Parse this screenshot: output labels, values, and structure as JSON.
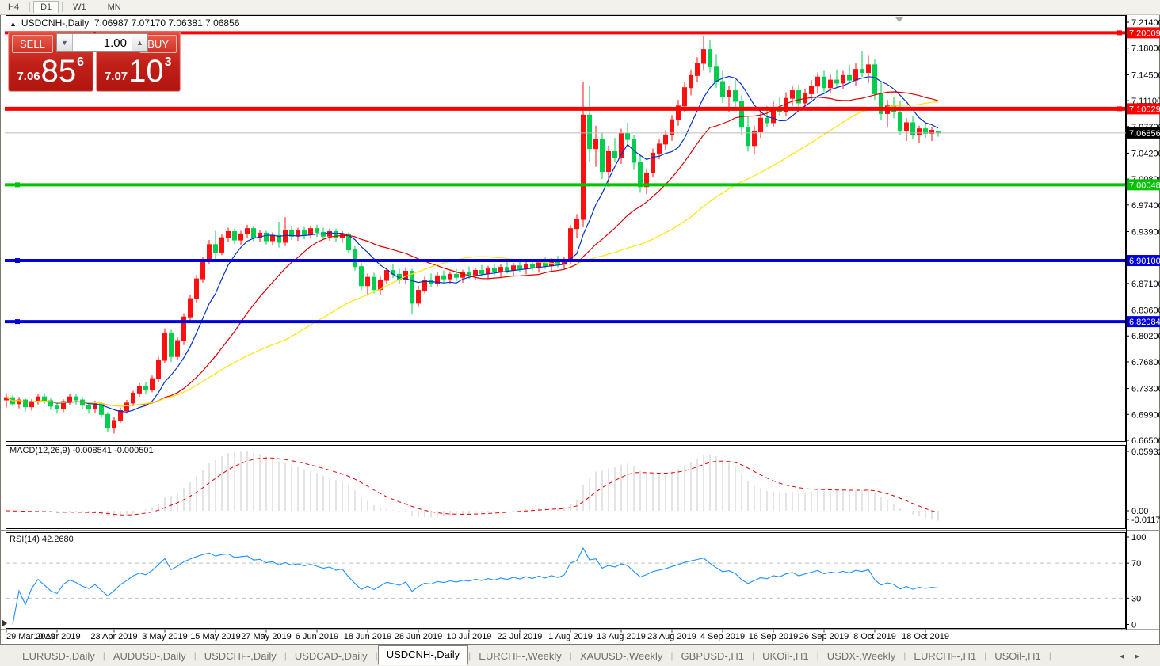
{
  "toolbar": {
    "timeframes": [
      "H4",
      "D1",
      "W1",
      "MN"
    ],
    "active": "D1"
  },
  "chart": {
    "title_symbol": "USDCNH-,Daily",
    "title_ohlc": "7.06987 7.07170 7.06381 7.06856"
  },
  "trade_panel": {
    "sell_label": "SELL",
    "buy_label": "BUY",
    "volume": "1.00",
    "sell_price_small": "7.06",
    "sell_price_big": "85",
    "sell_price_sup": "6",
    "buy_price_small": "7.07",
    "buy_price_big": "10",
    "buy_price_sup": "3"
  },
  "indicators": {
    "macd_label": "MACD(12,26,9) -0.008541 -0.000501",
    "rsi_label": "RSI(14) 42.2680"
  },
  "tabs": {
    "items": [
      "EURUSD-,Daily",
      "AUDUSD-,Daily",
      "USDCHF-,Daily",
      "USDCAD-,Daily",
      "USDCNH-,Daily",
      "EURCHF-,Weekly",
      "XAUUSD-,Weekly",
      "GBPUSD-,H1",
      "UKOil-,H1",
      "USDX-,Weekly",
      "EURCHF-,H1",
      "USOil-,H1"
    ],
    "active": "USDCNH-,Daily"
  },
  "chart_data": {
    "type": "candlestick",
    "symbol": "USDCNH",
    "timeframe": "Daily",
    "title": "USDCNH-,Daily",
    "last_candle": {
      "open": 7.06987,
      "high": 7.0717,
      "low": 7.06381,
      "close": 7.06856
    },
    "colors": {
      "bull": "#FE1010",
      "bear": "#00CE4E",
      "ma_fast": "#0033C8",
      "ma_mid": "#DC0000",
      "ma_slow": "#FFE400",
      "macd_hist": "#C8C8C8",
      "macd_signal": "#E00000",
      "rsi_line": "#1E90FF",
      "current_line": "#BBBBBB"
    },
    "price_axis_ticks": [
      7.214,
      7.18,
      7.145,
      7.111,
      7.077,
      7.042,
      7.008,
      6.974,
      6.939,
      6.871,
      6.836,
      6.802,
      6.768,
      6.733,
      6.699,
      6.665
    ],
    "price_range": [
      6.665,
      7.214
    ],
    "hlines": [
      {
        "price": 7.20009,
        "color": "#FF0000",
        "width": 4,
        "marker": "right"
      },
      {
        "price": 7.10029,
        "color": "#FF0000",
        "width": 5,
        "marker": "right"
      },
      {
        "price": 7.00048,
        "color": "#00C400",
        "width": 4,
        "marker": "left"
      },
      {
        "price": 6.901,
        "color": "#0000DC",
        "width": 4,
        "marker": "left"
      },
      {
        "price": 6.82084,
        "color": "#0000DC",
        "width": 4,
        "marker": "left"
      }
    ],
    "current_price": {
      "value": 7.06856,
      "label": "7.06856"
    },
    "date_ticks": [
      {
        "idx": 0,
        "label": "29 Mar 2019"
      },
      {
        "idx": 8,
        "label": "10 Apr 2019"
      },
      {
        "idx": 17,
        "label": "23 Apr 2019"
      },
      {
        "idx": 25,
        "label": "3 May 2019"
      },
      {
        "idx": 33,
        "label": "15 May 2019"
      },
      {
        "idx": 41,
        "label": "27 May 2019"
      },
      {
        "idx": 49,
        "label": "6 Jun 2019"
      },
      {
        "idx": 57,
        "label": "18 Jun 2019"
      },
      {
        "idx": 65,
        "label": "28 Jun 2019"
      },
      {
        "idx": 73,
        "label": "10 Jul 2019"
      },
      {
        "idx": 81,
        "label": "22 Jul 2019"
      },
      {
        "idx": 89,
        "label": "1 Aug 2019"
      },
      {
        "idx": 97,
        "label": "13 Aug 2019"
      },
      {
        "idx": 105,
        "label": "23 Aug 2019"
      },
      {
        "idx": 113,
        "label": "4 Sep 2019"
      },
      {
        "idx": 121,
        "label": "16 Sep 2019"
      },
      {
        "idx": 129,
        "label": "26 Sep 2019"
      },
      {
        "idx": 137,
        "label": "8 Oct 2019"
      },
      {
        "idx": 145,
        "label": "18 Oct 2019"
      }
    ],
    "moving_averages": [
      {
        "period": 8,
        "color": "#0033C8"
      },
      {
        "period": 21,
        "color": "#DC0000"
      },
      {
        "period": 45,
        "color": "#FFE400"
      }
    ],
    "macd": {
      "params": [
        12,
        26,
        9
      ],
      "value": -0.008541,
      "signal": -0.000501,
      "axis_labels": [
        "0.059323",
        "0.00",
        "-0.011773"
      ]
    },
    "rsi": {
      "period": 14,
      "value": 42.268,
      "levels": [
        100,
        70,
        30,
        0
      ]
    },
    "candles": [
      [
        6.718,
        6.727,
        6.708,
        6.721
      ],
      [
        6.721,
        6.724,
        6.71,
        6.713
      ],
      [
        6.713,
        6.722,
        6.707,
        6.718
      ],
      [
        6.718,
        6.721,
        6.703,
        6.709
      ],
      [
        6.709,
        6.719,
        6.704,
        6.716
      ],
      [
        6.716,
        6.726,
        6.712,
        6.722
      ],
      [
        6.722,
        6.727,
        6.713,
        6.717
      ],
      [
        6.717,
        6.72,
        6.705,
        6.71
      ],
      [
        6.71,
        6.716,
        6.7,
        6.706
      ],
      [
        6.706,
        6.719,
        6.702,
        6.716
      ],
      [
        6.716,
        6.726,
        6.711,
        6.722
      ],
      [
        6.722,
        6.726,
        6.712,
        6.718
      ],
      [
        6.718,
        6.722,
        6.706,
        6.711
      ],
      [
        6.711,
        6.716,
        6.7,
        6.706
      ],
      [
        6.706,
        6.717,
        6.701,
        6.713
      ],
      [
        6.713,
        6.715,
        6.695,
        6.699
      ],
      [
        6.699,
        6.702,
        6.676,
        6.681
      ],
      [
        6.681,
        6.696,
        6.674,
        6.691
      ],
      [
        6.691,
        6.708,
        6.688,
        6.704
      ],
      [
        6.704,
        6.718,
        6.7,
        6.714
      ],
      [
        6.714,
        6.73,
        6.71,
        6.727
      ],
      [
        6.727,
        6.74,
        6.722,
        6.736
      ],
      [
        6.736,
        6.742,
        6.726,
        6.732
      ],
      [
        6.732,
        6.75,
        6.728,
        6.746
      ],
      [
        6.746,
        6.775,
        6.742,
        6.77
      ],
      [
        6.77,
        6.812,
        6.766,
        6.806
      ],
      [
        6.806,
        6.81,
        6.768,
        6.775
      ],
      [
        6.775,
        6.8,
        6.77,
        6.796
      ],
      [
        6.796,
        6.832,
        6.79,
        6.827
      ],
      [
        6.827,
        6.856,
        6.82,
        6.851
      ],
      [
        6.851,
        6.882,
        6.846,
        6.877
      ],
      [
        6.877,
        6.906,
        6.872,
        6.901
      ],
      [
        6.901,
        6.928,
        6.896,
        6.922
      ],
      [
        6.922,
        6.94,
        6.902,
        6.912
      ],
      [
        6.912,
        6.936,
        6.908,
        6.931
      ],
      [
        6.931,
        6.944,
        6.925,
        6.939
      ],
      [
        6.939,
        6.943,
        6.923,
        6.928
      ],
      [
        6.928,
        6.94,
        6.922,
        6.936
      ],
      [
        6.936,
        6.948,
        6.93,
        6.943
      ],
      [
        6.943,
        6.946,
        6.926,
        6.931
      ],
      [
        6.931,
        6.941,
        6.925,
        6.937
      ],
      [
        6.937,
        6.94,
        6.922,
        6.927
      ],
      [
        6.927,
        6.938,
        6.921,
        6.934
      ],
      [
        6.934,
        6.952,
        6.918,
        6.925
      ],
      [
        6.925,
        6.958,
        6.92,
        6.94
      ],
      [
        6.94,
        6.946,
        6.928,
        6.933
      ],
      [
        6.933,
        6.944,
        6.927,
        6.94
      ],
      [
        6.94,
        6.945,
        6.929,
        6.935
      ],
      [
        6.935,
        6.947,
        6.93,
        6.943
      ],
      [
        6.943,
        6.948,
        6.932,
        6.938
      ],
      [
        6.938,
        6.944,
        6.928,
        6.933
      ],
      [
        6.933,
        6.943,
        6.927,
        6.939
      ],
      [
        6.939,
        6.943,
        6.926,
        6.931
      ],
      [
        6.931,
        6.94,
        6.924,
        6.936
      ],
      [
        6.936,
        6.938,
        6.91,
        6.915
      ],
      [
        6.915,
        6.92,
        6.888,
        6.893
      ],
      [
        6.893,
        6.898,
        6.862,
        6.868
      ],
      [
        6.868,
        6.884,
        6.855,
        6.879
      ],
      [
        6.879,
        6.885,
        6.858,
        6.863
      ],
      [
        6.863,
        6.88,
        6.856,
        6.875
      ],
      [
        6.875,
        6.892,
        6.87,
        6.888
      ],
      [
        6.888,
        6.896,
        6.878,
        6.883
      ],
      [
        6.883,
        6.89,
        6.87,
        6.876
      ],
      [
        6.876,
        6.892,
        6.871,
        6.887
      ],
      [
        6.887,
        6.89,
        6.83,
        6.845
      ],
      [
        6.845,
        6.868,
        6.84,
        6.862
      ],
      [
        6.862,
        6.88,
        6.858,
        6.875
      ],
      [
        6.875,
        6.884,
        6.866,
        6.871
      ],
      [
        6.871,
        6.886,
        6.867,
        6.881
      ],
      [
        6.881,
        6.888,
        6.872,
        6.877
      ],
      [
        6.877,
        6.887,
        6.87,
        6.883
      ],
      [
        6.883,
        6.89,
        6.874,
        6.879
      ],
      [
        6.879,
        6.889,
        6.872,
        6.885
      ],
      [
        6.885,
        6.893,
        6.877,
        6.882
      ],
      [
        6.882,
        6.891,
        6.875,
        6.888
      ],
      [
        6.888,
        6.895,
        6.88,
        6.884
      ],
      [
        6.884,
        6.894,
        6.877,
        6.89
      ],
      [
        6.89,
        6.897,
        6.882,
        6.886
      ],
      [
        6.886,
        6.896,
        6.879,
        6.892
      ],
      [
        6.892,
        6.899,
        6.884,
        6.888
      ],
      [
        6.888,
        6.898,
        6.881,
        6.894
      ],
      [
        6.894,
        6.901,
        6.886,
        6.89
      ],
      [
        6.89,
        6.9,
        6.883,
        6.896
      ],
      [
        6.896,
        6.903,
        6.888,
        6.892
      ],
      [
        6.892,
        6.902,
        6.885,
        6.898
      ],
      [
        6.898,
        6.905,
        6.89,
        6.894
      ],
      [
        6.894,
        6.904,
        6.887,
        6.9
      ],
      [
        6.9,
        6.907,
        6.892,
        6.896
      ],
      [
        6.896,
        6.906,
        6.889,
        6.902
      ],
      [
        6.902,
        6.948,
        6.896,
        6.943
      ],
      [
        6.943,
        6.962,
        6.93,
        6.955
      ],
      [
        6.955,
        7.136,
        6.945,
        7.092
      ],
      [
        7.092,
        7.13,
        7.03,
        7.048
      ],
      [
        7.048,
        7.078,
        7.024,
        7.06
      ],
      [
        7.06,
        7.068,
        7.008,
        7.018
      ],
      [
        7.018,
        7.052,
        6.998,
        7.044
      ],
      [
        7.044,
        7.062,
        7.03,
        7.036
      ],
      [
        7.036,
        7.074,
        7.028,
        7.068
      ],
      [
        7.068,
        7.082,
        7.052,
        7.06
      ],
      [
        7.06,
        7.066,
        7.02,
        7.03
      ],
      [
        7.03,
        7.04,
        6.99,
        6.998
      ],
      [
        6.998,
        7.022,
        6.988,
        7.016
      ],
      [
        7.016,
        7.048,
        7.01,
        7.042
      ],
      [
        7.042,
        7.06,
        7.034,
        7.054
      ],
      [
        7.054,
        7.072,
        7.046,
        7.066
      ],
      [
        7.066,
        7.092,
        7.058,
        7.086
      ],
      [
        7.086,
        7.112,
        7.078,
        7.104
      ],
      [
        7.104,
        7.136,
        7.096,
        7.128
      ],
      [
        7.128,
        7.152,
        7.118,
        7.144
      ],
      [
        7.144,
        7.168,
        7.136,
        7.16
      ],
      [
        7.16,
        7.196,
        7.15,
        7.178
      ],
      [
        7.178,
        7.19,
        7.148,
        7.156
      ],
      [
        7.156,
        7.172,
        7.128,
        7.136
      ],
      [
        7.136,
        7.15,
        7.108,
        7.116
      ],
      [
        7.116,
        7.13,
        7.096,
        7.124
      ],
      [
        7.124,
        7.138,
        7.102,
        7.11
      ],
      [
        7.11,
        7.118,
        7.066,
        7.076
      ],
      [
        7.076,
        7.09,
        7.044,
        7.052
      ],
      [
        7.052,
        7.078,
        7.04,
        7.07
      ],
      [
        7.07,
        7.096,
        7.062,
        7.088
      ],
      [
        7.088,
        7.104,
        7.076,
        7.082
      ],
      [
        7.082,
        7.11,
        7.076,
        7.102
      ],
      [
        7.102,
        7.116,
        7.09,
        7.096
      ],
      [
        7.096,
        7.122,
        7.09,
        7.114
      ],
      [
        7.114,
        7.13,
        7.104,
        7.124
      ],
      [
        7.124,
        7.132,
        7.102,
        7.108
      ],
      [
        7.108,
        7.126,
        7.1,
        7.12
      ],
      [
        7.12,
        7.138,
        7.112,
        7.13
      ],
      [
        7.13,
        7.148,
        7.12,
        7.142
      ],
      [
        7.142,
        7.15,
        7.122,
        7.128
      ],
      [
        7.128,
        7.146,
        7.12,
        7.138
      ],
      [
        7.138,
        7.152,
        7.128,
        7.134
      ],
      [
        7.134,
        7.15,
        7.126,
        7.144
      ],
      [
        7.144,
        7.158,
        7.134,
        7.138
      ],
      [
        7.138,
        7.16,
        7.13,
        7.152
      ],
      [
        7.152,
        7.176,
        7.142,
        7.148
      ],
      [
        7.148,
        7.17,
        7.134,
        7.158
      ],
      [
        7.158,
        7.165,
        7.112,
        7.12
      ],
      [
        7.12,
        7.136,
        7.086,
        7.094
      ],
      [
        7.094,
        7.112,
        7.076,
        7.104
      ],
      [
        7.104,
        7.116,
        7.088,
        7.096
      ],
      [
        7.096,
        7.11,
        7.066,
        7.072
      ],
      [
        7.072,
        7.088,
        7.058,
        7.082
      ],
      [
        7.082,
        7.09,
        7.06,
        7.066
      ],
      [
        7.066,
        7.078,
        7.056,
        7.074
      ],
      [
        7.074,
        7.082,
        7.062,
        7.068
      ],
      [
        7.068,
        7.076,
        7.058,
        7.072
      ],
      [
        7.06987,
        7.0717,
        7.06381,
        7.06856
      ]
    ]
  }
}
